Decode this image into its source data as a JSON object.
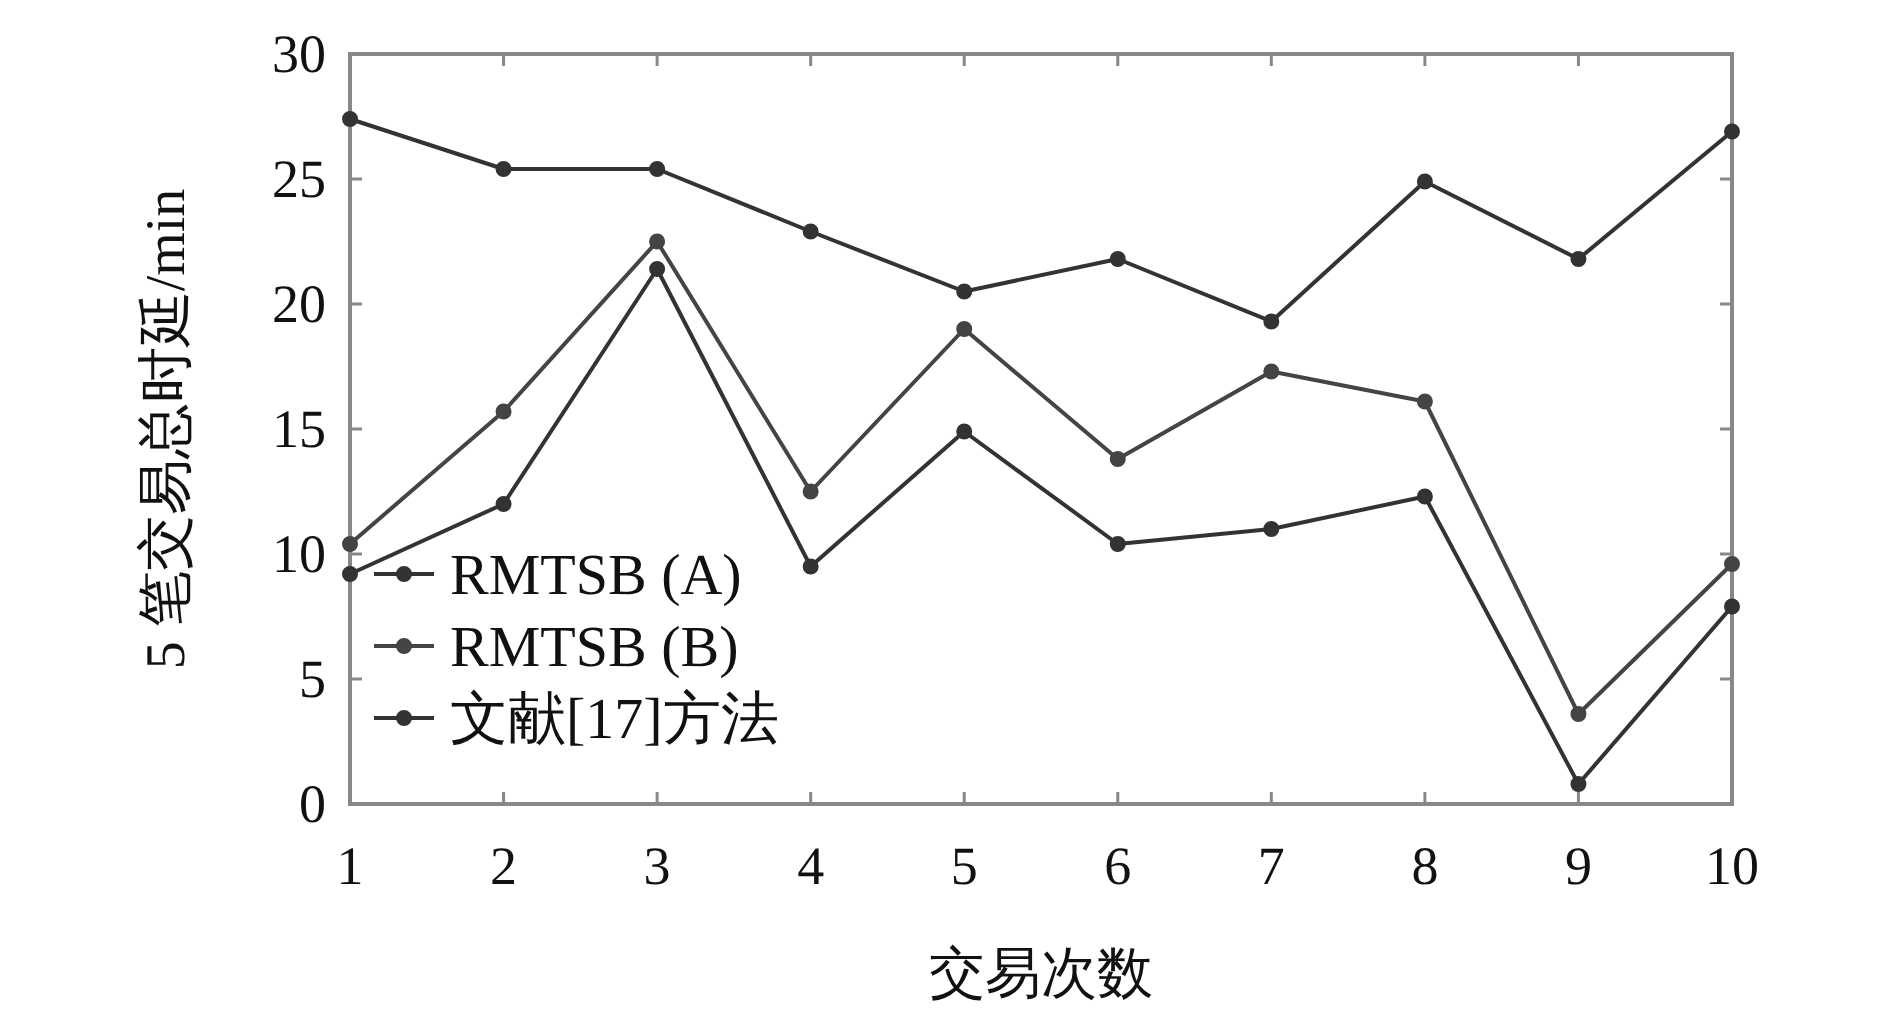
{
  "chart_data": {
    "type": "line",
    "xlabel": "交易次数",
    "ylabel": "5 笔交易总时延/min",
    "x": [
      1,
      2,
      3,
      4,
      5,
      6,
      7,
      8,
      9,
      10
    ],
    "xlim": [
      1,
      10
    ],
    "xticks": [
      1,
      2,
      3,
      4,
      5,
      6,
      7,
      8,
      9,
      10
    ],
    "ylim": [
      0,
      30
    ],
    "yticks": [
      0,
      5,
      10,
      15,
      20,
      25,
      30
    ],
    "grid": false,
    "legend": "bottom left",
    "marker": "circle",
    "line_style": "solid",
    "series": [
      {
        "name": "RMTSB (A)",
        "color": "#333333",
        "values": [
          9.2,
          12.0,
          21.4,
          9.5,
          14.9,
          10.4,
          11.0,
          12.3,
          0.8,
          7.9
        ]
      },
      {
        "name": "RMTSB (B)",
        "color": "#444444",
        "values": [
          10.4,
          15.7,
          22.5,
          12.5,
          19.0,
          13.8,
          17.3,
          16.1,
          3.6,
          9.6
        ]
      },
      {
        "name": "文献[17]方法",
        "color": "#333333",
        "values": [
          27.4,
          25.4,
          25.4,
          22.9,
          20.5,
          21.8,
          19.3,
          24.9,
          21.8,
          26.9
        ]
      }
    ]
  }
}
